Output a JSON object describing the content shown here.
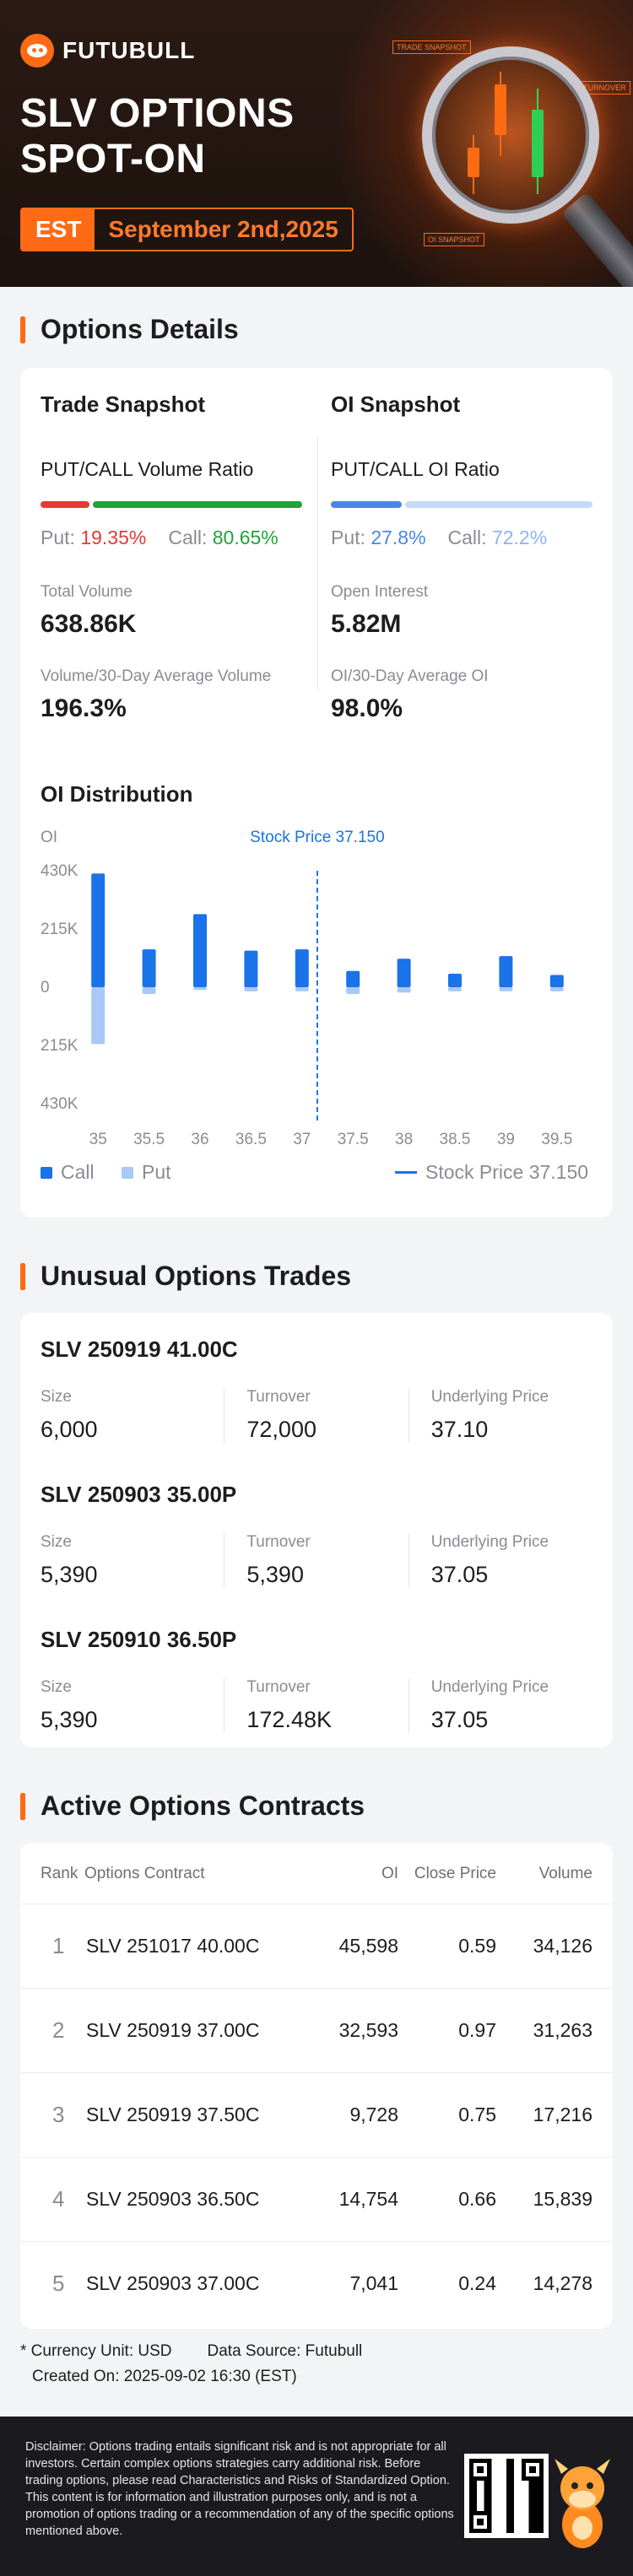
{
  "header": {
    "brand": "FUTUBULL",
    "title_line1": "SLV OPTIONS",
    "title_line2": "SPOT-ON",
    "timezone": "EST",
    "date": "September 2nd,2025",
    "tag_trade": "TRADE SNAPSHOT",
    "tag_turnover": "TURNOVER",
    "tag_oi": "OI SNAPSHOT"
  },
  "options_details": {
    "title": "Options Details",
    "trade": {
      "heading": "Trade Snapshot",
      "ratio_label": "PUT/CALL Volume Ratio",
      "put_label": "Put:",
      "put_value": "19.35%",
      "call_label": "Call:",
      "call_value": "80.65%",
      "put_fraction": 0.1935,
      "total_volume_label": "Total Volume",
      "total_volume": "638.86K",
      "avg_label": "Volume/30-Day Average Volume",
      "avg_value": "196.3%"
    },
    "oi": {
      "heading": "OI Snapshot",
      "ratio_label": "PUT/CALL OI Ratio",
      "put_label": "Put:",
      "put_value": "27.8%",
      "call_label": "Call:",
      "call_value": "72.2%",
      "put_fraction": 0.278,
      "oi_label": "Open Interest",
      "oi_value": "5.82M",
      "avg_label": "OI/30-Day Average OI",
      "avg_value": "98.0%"
    }
  },
  "colors": {
    "accent": "#ff6a14",
    "put_red": "#e53935",
    "call_green": "#1fa33b",
    "call_blue": "#1a73e8",
    "put_lightblue": "#a9c8f5",
    "oi_put_blue": "#4a86e8",
    "oi_call_light": "#c7dbf8"
  },
  "chart_data": {
    "type": "bar",
    "title": "OI Distribution",
    "ylabel": "OI",
    "categories": [
      "35",
      "35.5",
      "36",
      "36.5",
      "37",
      "37.5",
      "38",
      "38.5",
      "39",
      "39.5"
    ],
    "y_tick_labels": [
      "430K",
      "215K",
      "0",
      "215K",
      "430K"
    ],
    "ylim": [
      -430000,
      430000
    ],
    "series": [
      {
        "name": "Call",
        "values": [
          420000,
          140000,
          270000,
          135000,
          140000,
          60000,
          105000,
          50000,
          115000,
          45000
        ]
      },
      {
        "name": "Put",
        "values": [
          -210000,
          -25000,
          -10000,
          -15000,
          -15000,
          -25000,
          -20000,
          -15000,
          -15000,
          -15000
        ]
      }
    ],
    "stock_price": {
      "label": "Stock Price 37.150",
      "value": 37.15
    },
    "legend_position": "bottom",
    "grid": false
  },
  "unusual_trades": {
    "title": "Unusual Options Trades",
    "labels": {
      "size": "Size",
      "turnover": "Turnover",
      "underlying": "Underlying Price"
    },
    "items": [
      {
        "contract": "SLV 250919 41.00C",
        "size": "6,000",
        "turnover": "72,000",
        "underlying": "37.10"
      },
      {
        "contract": "SLV 250903 35.00P",
        "size": "5,390",
        "turnover": "5,390",
        "underlying": "37.05"
      },
      {
        "contract": "SLV 250910 36.50P",
        "size": "5,390",
        "turnover": "172.48K",
        "underlying": "37.05"
      }
    ]
  },
  "active_contracts": {
    "title": "Active Options Contracts",
    "headers": {
      "rank": "Rank",
      "contract": "Options Contract",
      "oi": "OI",
      "close": "Close Price",
      "volume": "Volume"
    },
    "rows": [
      {
        "rank": "1",
        "contract": "SLV 251017 40.00C",
        "oi": "45,598",
        "close": "0.59",
        "volume": "34,126"
      },
      {
        "rank": "2",
        "contract": "SLV 250919 37.00C",
        "oi": "32,593",
        "close": "0.97",
        "volume": "31,263"
      },
      {
        "rank": "3",
        "contract": "SLV 250919 37.50C",
        "oi": "9,728",
        "close": "0.75",
        "volume": "17,216"
      },
      {
        "rank": "4",
        "contract": "SLV 250903 36.50C",
        "oi": "14,754",
        "close": "0.66",
        "volume": "15,839"
      },
      {
        "rank": "5",
        "contract": "SLV 250903 37.00C",
        "oi": "7,041",
        "close": "0.24",
        "volume": "14,278"
      }
    ]
  },
  "footnote": {
    "currency": "* Currency Unit: USD",
    "source": "Data Source: Futubull",
    "created": "Created On: 2025-09-02 16:30 (EST)"
  },
  "disclaimer": "Disclaimer: Options trading entails significant risk and is not appropriate for all investors. Certain complex options strategies carry additional risk. Before trading options, please read Characteristics and Risks of Standardized Option. This content is for information and illustration purposes only, and is not a promotion of options trading or a recommendation of any of the specific options mentioned above."
}
